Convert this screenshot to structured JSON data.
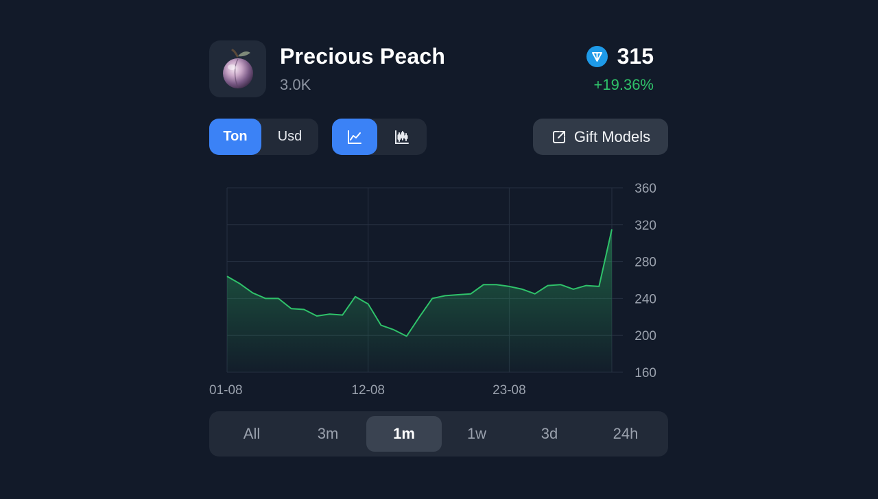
{
  "header": {
    "title": "Precious Peach",
    "subtitle": "3.0K",
    "price": "315",
    "change": "+19.36%",
    "currency_icon": "ton-diamond-icon",
    "thumb_icon": "peach-icon"
  },
  "toolbar": {
    "currency": [
      {
        "label": "Ton",
        "active": true
      },
      {
        "label": "Usd",
        "active": false
      }
    ],
    "chart_types": [
      {
        "icon": "line-chart-icon",
        "active": true
      },
      {
        "icon": "candlestick-chart-icon",
        "active": false
      }
    ],
    "gift_models_label": "Gift Models",
    "gift_models_icon": "external-link-icon"
  },
  "colors": {
    "background": "#121a29",
    "accent": "#3b82f6",
    "positive": "#2fc26a",
    "ton_blue": "#1e9ae8"
  },
  "chart_data": {
    "type": "area",
    "x_ticks": [
      {
        "label": "01-08",
        "day": 1
      },
      {
        "label": "12-08",
        "day": 12
      },
      {
        "label": "23-08",
        "day": 23
      }
    ],
    "y_ticks": [
      160,
      200,
      240,
      280,
      320,
      360
    ],
    "ylim": [
      160,
      360
    ],
    "xlim": [
      1,
      31
    ],
    "grid": true,
    "series": [
      {
        "points": [
          [
            1,
            264
          ],
          [
            2,
            256
          ],
          [
            3,
            246
          ],
          [
            4,
            240
          ],
          [
            5,
            240
          ],
          [
            6,
            229
          ],
          [
            7,
            228
          ],
          [
            8,
            221
          ],
          [
            9,
            223
          ],
          [
            10,
            222
          ],
          [
            11,
            242
          ],
          [
            12,
            234
          ],
          [
            13,
            211
          ],
          [
            14,
            206
          ],
          [
            15,
            199
          ],
          [
            16,
            220
          ],
          [
            17,
            240
          ],
          [
            18,
            243
          ],
          [
            19,
            244
          ],
          [
            20,
            245
          ],
          [
            21,
            255
          ],
          [
            22,
            255
          ],
          [
            23,
            253
          ],
          [
            24,
            250
          ],
          [
            25,
            245
          ],
          [
            26,
            254
          ],
          [
            27,
            255
          ],
          [
            28,
            250
          ],
          [
            29,
            254
          ],
          [
            30,
            253
          ],
          [
            31,
            315
          ]
        ]
      }
    ]
  },
  "periods": [
    {
      "label": "All",
      "active": false
    },
    {
      "label": "3m",
      "active": false
    },
    {
      "label": "1m",
      "active": true
    },
    {
      "label": "1w",
      "active": false
    },
    {
      "label": "3d",
      "active": false
    },
    {
      "label": "24h",
      "active": false
    }
  ]
}
